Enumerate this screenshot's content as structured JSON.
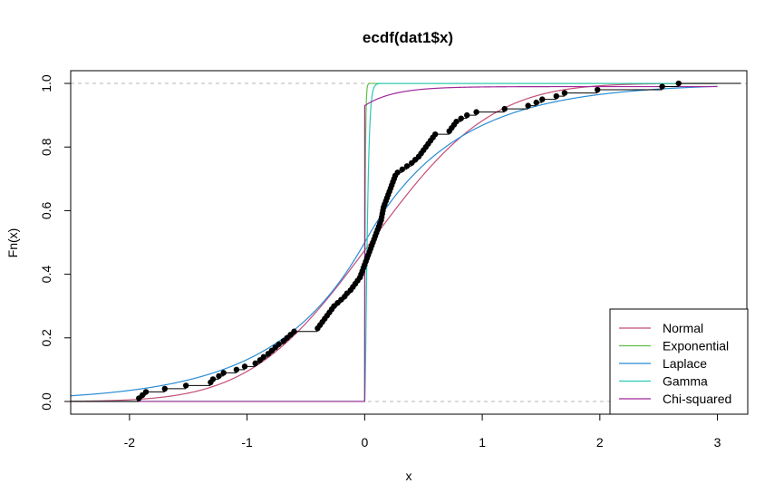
{
  "chart_data": {
    "type": "line",
    "title": "ecdf(dat1$x)",
    "xlabel": "x",
    "ylabel": "Fn(x)",
    "xlim": [
      -2.5,
      3.25
    ],
    "ylim": [
      -0.04,
      1.04
    ],
    "x_ticks": [
      "-2",
      "-1",
      "0",
      "1",
      "2",
      "3"
    ],
    "x_tick_values": [
      -2,
      -1,
      0,
      1,
      2,
      3
    ],
    "y_ticks": [
      "0.0",
      "0.2",
      "0.4",
      "0.6",
      "0.8",
      "1.0"
    ],
    "y_tick_values": [
      0,
      0.2,
      0.4,
      0.6,
      0.8,
      1.0
    ],
    "reference_lines": [
      0,
      1
    ],
    "legend_position": "bottom-right",
    "ecdf_points": [
      [
        -1.92,
        0.01
      ],
      [
        -1.89,
        0.02
      ],
      [
        -1.86,
        0.03
      ],
      [
        -1.7,
        0.04
      ],
      [
        -1.52,
        0.05
      ],
      [
        -1.31,
        0.06
      ],
      [
        -1.29,
        0.07
      ],
      [
        -1.24,
        0.08
      ],
      [
        -1.2,
        0.09
      ],
      [
        -1.09,
        0.1
      ],
      [
        -1.02,
        0.11
      ],
      [
        -0.93,
        0.12
      ],
      [
        -0.89,
        0.13
      ],
      [
        -0.86,
        0.14
      ],
      [
        -0.82,
        0.15
      ],
      [
        -0.79,
        0.16
      ],
      [
        -0.76,
        0.17
      ],
      [
        -0.73,
        0.18
      ],
      [
        -0.69,
        0.19
      ],
      [
        -0.66,
        0.2
      ],
      [
        -0.63,
        0.21
      ],
      [
        -0.6,
        0.22
      ],
      [
        -0.4,
        0.23
      ],
      [
        -0.38,
        0.24
      ],
      [
        -0.36,
        0.25
      ],
      [
        -0.34,
        0.26
      ],
      [
        -0.32,
        0.27
      ],
      [
        -0.3,
        0.28
      ],
      [
        -0.28,
        0.29
      ],
      [
        -0.26,
        0.3
      ],
      [
        -0.23,
        0.31
      ],
      [
        -0.2,
        0.32
      ],
      [
        -0.17,
        0.33
      ],
      [
        -0.15,
        0.34
      ],
      [
        -0.12,
        0.35
      ],
      [
        -0.1,
        0.36
      ],
      [
        -0.08,
        0.37
      ],
      [
        -0.06,
        0.38
      ],
      [
        -0.04,
        0.39
      ],
      [
        -0.03,
        0.4
      ],
      [
        -0.02,
        0.41
      ],
      [
        -0.01,
        0.42
      ],
      [
        0.0,
        0.43
      ],
      [
        0.01,
        0.44
      ],
      [
        0.02,
        0.45
      ],
      [
        0.03,
        0.46
      ],
      [
        0.04,
        0.47
      ],
      [
        0.05,
        0.48
      ],
      [
        0.06,
        0.49
      ],
      [
        0.07,
        0.5
      ],
      [
        0.08,
        0.51
      ],
      [
        0.09,
        0.52
      ],
      [
        0.1,
        0.53
      ],
      [
        0.11,
        0.54
      ],
      [
        0.12,
        0.55
      ],
      [
        0.13,
        0.56
      ],
      [
        0.14,
        0.57
      ],
      [
        0.145,
        0.58
      ],
      [
        0.15,
        0.59
      ],
      [
        0.155,
        0.6
      ],
      [
        0.16,
        0.61
      ],
      [
        0.17,
        0.62
      ],
      [
        0.18,
        0.63
      ],
      [
        0.19,
        0.64
      ],
      [
        0.2,
        0.65
      ],
      [
        0.21,
        0.66
      ],
      [
        0.22,
        0.67
      ],
      [
        0.23,
        0.68
      ],
      [
        0.24,
        0.69
      ],
      [
        0.25,
        0.7
      ],
      [
        0.26,
        0.71
      ],
      [
        0.28,
        0.72
      ],
      [
        0.32,
        0.73
      ],
      [
        0.36,
        0.74
      ],
      [
        0.4,
        0.75
      ],
      [
        0.43,
        0.76
      ],
      [
        0.46,
        0.77
      ],
      [
        0.48,
        0.78
      ],
      [
        0.5,
        0.79
      ],
      [
        0.52,
        0.8
      ],
      [
        0.54,
        0.81
      ],
      [
        0.56,
        0.82
      ],
      [
        0.58,
        0.83
      ],
      [
        0.6,
        0.84
      ],
      [
        0.72,
        0.85
      ],
      [
        0.74,
        0.86
      ],
      [
        0.76,
        0.87
      ],
      [
        0.78,
        0.88
      ],
      [
        0.82,
        0.89
      ],
      [
        0.87,
        0.9
      ],
      [
        0.95,
        0.91
      ],
      [
        1.19,
        0.92
      ],
      [
        1.39,
        0.93
      ],
      [
        1.46,
        0.94
      ],
      [
        1.51,
        0.95
      ],
      [
        1.63,
        0.96
      ],
      [
        1.7,
        0.97
      ],
      [
        1.98,
        0.98
      ],
      [
        2.53,
        0.99
      ],
      [
        2.67,
        1.0
      ]
    ],
    "series": [
      {
        "name": "Normal",
        "color": "#C44E7B",
        "dist": "normal",
        "params": {
          "mean": 0.05,
          "sd": 0.8
        }
      },
      {
        "name": "Exponential",
        "color": "#5FBF44",
        "dist": "exponential",
        "params": {
          "rate": 200
        }
      },
      {
        "name": "Laplace",
        "color": "#2A8CD4",
        "dist": "laplace",
        "params": {
          "location": 0.0,
          "scale": 0.75
        }
      },
      {
        "name": "Gamma",
        "color": "#28C9B4",
        "dist": "gamma",
        "params": {
          "rate": 80
        }
      },
      {
        "name": "Chi-squared",
        "color": "#A0289A",
        "dist": "chisq",
        "params": {
          "df": 0.1
        }
      }
    ]
  }
}
